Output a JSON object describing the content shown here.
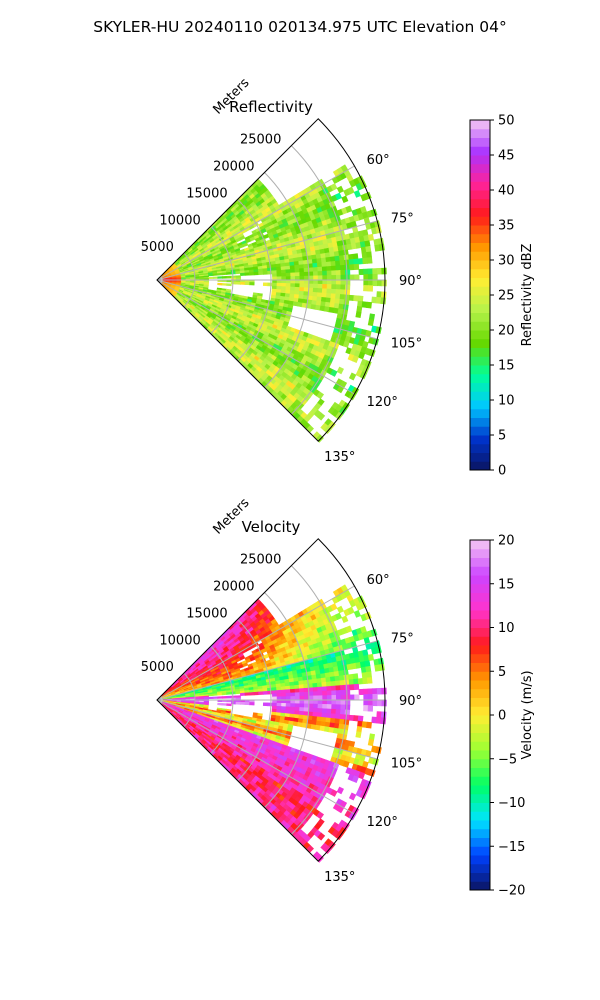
{
  "figure": {
    "suptitle": "SKYLER-HU  20240110  020134.975 UTC Elevation 04°"
  },
  "chart_data": [
    {
      "type": "heatmap",
      "subtype": "polar sector (radar PPI)",
      "title": "Reflectivity",
      "radial_axis_label": "Meters",
      "radial_ticks": [
        "5000",
        "10000",
        "15000",
        "20000",
        "25000"
      ],
      "radial_tick_values": [
        5000,
        10000,
        15000,
        20000,
        25000
      ],
      "radial_range": [
        0,
        30000
      ],
      "azimuth_ticks": [
        "60°",
        "75°",
        "90°",
        "105°",
        "120°",
        "135°"
      ],
      "azimuth_tick_values": [
        60,
        75,
        90,
        105,
        120,
        135
      ],
      "azimuth_range": [
        45,
        135
      ],
      "grid": true,
      "colorbar": {
        "label": "Reflectivity dBZ",
        "ticks": [
          "0",
          "5",
          "10",
          "15",
          "20",
          "25",
          "30",
          "35",
          "40",
          "45",
          "50"
        ],
        "range": [
          0,
          50
        ],
        "stops": [
          "#0b1560",
          "#0033cc",
          "#00c8ff",
          "#00ff9a",
          "#66d900",
          "#b5f24a",
          "#ffee33",
          "#ff9900",
          "#ff1a1a",
          "#ff2299",
          "#aa33ff",
          "#f4c8f4"
        ]
      },
      "gates": "2D grid of reflectivity values (dBZ) over azimuth 45–135° and range 0–30000 m; mostly 18–28 dBZ with 30–40 dBZ near the radar",
      "gap_color": "#ffffff"
    },
    {
      "type": "heatmap",
      "subtype": "polar sector (radar PPI)",
      "title": "Velocity",
      "radial_axis_label": "Meters",
      "radial_ticks": [
        "5000",
        "10000",
        "15000",
        "20000",
        "25000"
      ],
      "radial_tick_values": [
        5000,
        10000,
        15000,
        20000,
        25000
      ],
      "radial_range": [
        0,
        30000
      ],
      "azimuth_ticks": [
        "60°",
        "75°",
        "90°",
        "105°",
        "120°",
        "135°"
      ],
      "azimuth_tick_values": [
        60,
        75,
        90,
        105,
        120,
        135
      ],
      "azimuth_range": [
        45,
        135
      ],
      "grid": true,
      "colorbar": {
        "label": "Velocity (m/s)",
        "ticks": [
          "−20",
          "−15",
          "−10",
          "−5",
          "0",
          "5",
          "10",
          "15",
          "20"
        ],
        "range": [
          -20,
          20
        ],
        "stops": [
          "#0b1560",
          "#0040ff",
          "#00e5ff",
          "#00ff66",
          "#9cff33",
          "#ffee33",
          "#ff9900",
          "#ff1a1a",
          "#ff33cc",
          "#cc44ff",
          "#f4c8f4"
        ]
      },
      "gates": "2D grid of radial velocity values (m/s) over azimuth 45–135° and range 0–30000 m; banded structure ranging about −12 to +18 m/s",
      "gap_color": "#ffffff"
    }
  ]
}
